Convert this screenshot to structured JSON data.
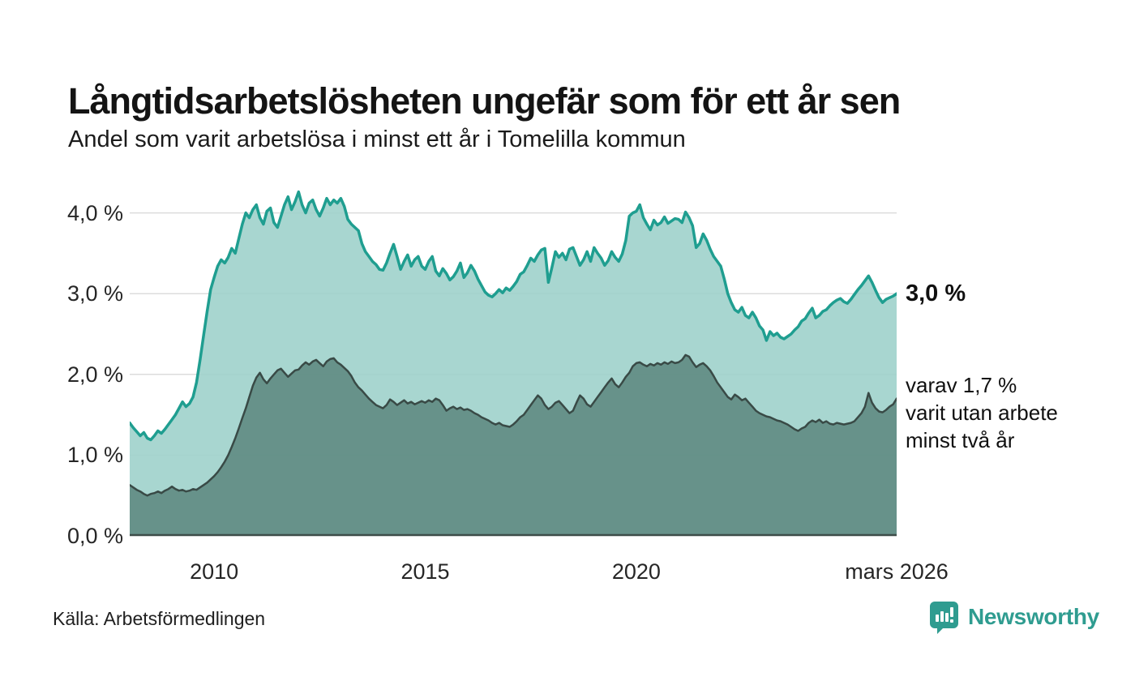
{
  "header": {
    "title": "Långtidsarbetslösheten ungefär som för ett år sen",
    "subtitle": "Andel som varit arbetslösa i minst ett år i Tomelilla kommun"
  },
  "chart_data": {
    "type": "area",
    "title": "Långtidsarbetslösheten ungefär som för ett år sen",
    "subtitle": "Andel som varit arbetslösa i minst ett år i Tomelilla kommun",
    "unit": "%",
    "frequency": "monthly",
    "x_start": "2008-01",
    "x_end": "2026-03",
    "ylim": [
      0,
      4.33
    ],
    "grid": "horizontal",
    "legend_position": "right-edge-annotations",
    "y_ticks": [
      {
        "value": 0,
        "label": "0,0 %"
      },
      {
        "value": 1,
        "label": "1,0 %"
      },
      {
        "value": 2,
        "label": "2,0 %"
      },
      {
        "value": 3,
        "label": "3,0 %"
      },
      {
        "value": 4,
        "label": "4,0 %"
      }
    ],
    "x_ticks": [
      {
        "index": 24,
        "label": "2010"
      },
      {
        "index": 84,
        "label": "2015"
      },
      {
        "index": 144,
        "label": "2020"
      },
      {
        "index": 218,
        "label": "mars 2026"
      }
    ],
    "end_labels": {
      "primary": "3,0 %",
      "secondary_lines": [
        "varav 1,7 %",
        "varit utan arbete",
        "minst två år"
      ]
    },
    "series": [
      {
        "name": "Andel som varit arbetslösa minst ett år",
        "line_color": "#1f9e90",
        "fill_color": "#9fd2cb",
        "line_width": 3.5,
        "latest_value": 3.0,
        "values": [
          1.4,
          1.34,
          1.29,
          1.24,
          1.28,
          1.21,
          1.19,
          1.24,
          1.3,
          1.27,
          1.32,
          1.38,
          1.44,
          1.5,
          1.58,
          1.66,
          1.6,
          1.64,
          1.72,
          1.9,
          2.18,
          2.48,
          2.78,
          3.05,
          3.2,
          3.34,
          3.42,
          3.38,
          3.45,
          3.56,
          3.5,
          3.68,
          3.86,
          4.0,
          3.94,
          4.04,
          4.1,
          3.94,
          3.86,
          4.02,
          4.06,
          3.88,
          3.82,
          3.96,
          4.1,
          4.2,
          4.04,
          4.14,
          4.26,
          4.1,
          4.0,
          4.12,
          4.16,
          4.04,
          3.96,
          4.06,
          4.18,
          4.1,
          4.16,
          4.12,
          4.18,
          4.08,
          3.92,
          3.86,
          3.82,
          3.78,
          3.62,
          3.52,
          3.46,
          3.4,
          3.36,
          3.3,
          3.29,
          3.38,
          3.5,
          3.61,
          3.46,
          3.3,
          3.4,
          3.48,
          3.34,
          3.42,
          3.46,
          3.34,
          3.3,
          3.4,
          3.46,
          3.28,
          3.22,
          3.31,
          3.25,
          3.17,
          3.21,
          3.28,
          3.38,
          3.2,
          3.26,
          3.35,
          3.28,
          3.18,
          3.1,
          3.02,
          2.98,
          2.96,
          3.0,
          3.05,
          3.01,
          3.07,
          3.04,
          3.09,
          3.15,
          3.24,
          3.27,
          3.35,
          3.44,
          3.4,
          3.48,
          3.54,
          3.56,
          3.14,
          3.32,
          3.52,
          3.45,
          3.5,
          3.42,
          3.55,
          3.57,
          3.46,
          3.35,
          3.42,
          3.52,
          3.4,
          3.57,
          3.5,
          3.44,
          3.35,
          3.41,
          3.52,
          3.45,
          3.4,
          3.49,
          3.66,
          3.96,
          4.0,
          4.02,
          4.1,
          3.94,
          3.86,
          3.79,
          3.91,
          3.85,
          3.88,
          3.95,
          3.87,
          3.9,
          3.93,
          3.92,
          3.88,
          4.01,
          3.94,
          3.84,
          3.57,
          3.62,
          3.74,
          3.66,
          3.55,
          3.46,
          3.4,
          3.34,
          3.18,
          3.0,
          2.89,
          2.8,
          2.77,
          2.83,
          2.73,
          2.7,
          2.77,
          2.7,
          2.6,
          2.55,
          2.42,
          2.53,
          2.48,
          2.51,
          2.46,
          2.44,
          2.47,
          2.5,
          2.55,
          2.59,
          2.66,
          2.69,
          2.76,
          2.82,
          2.7,
          2.73,
          2.78,
          2.8,
          2.85,
          2.89,
          2.92,
          2.94,
          2.9,
          2.88,
          2.93,
          2.99,
          3.05,
          3.1,
          3.16,
          3.22,
          3.14,
          3.04,
          2.95,
          2.89,
          2.93,
          2.95,
          2.97,
          3.0
        ]
      },
      {
        "name": "varav arbetslösa minst två år",
        "line_color": "#394a46",
        "fill_color": "#5f8b82",
        "line_width": 2.5,
        "latest_value": 1.7,
        "values": [
          0.63,
          0.6,
          0.57,
          0.55,
          0.52,
          0.5,
          0.52,
          0.53,
          0.55,
          0.53,
          0.56,
          0.58,
          0.61,
          0.58,
          0.56,
          0.57,
          0.55,
          0.56,
          0.58,
          0.57,
          0.6,
          0.63,
          0.66,
          0.7,
          0.74,
          0.79,
          0.85,
          0.92,
          1.0,
          1.1,
          1.21,
          1.33,
          1.46,
          1.58,
          1.72,
          1.86,
          1.96,
          2.02,
          1.94,
          1.89,
          1.95,
          2.0,
          2.05,
          2.07,
          2.02,
          1.97,
          2.01,
          2.05,
          2.06,
          2.11,
          2.15,
          2.12,
          2.16,
          2.18,
          2.14,
          2.1,
          2.16,
          2.19,
          2.2,
          2.15,
          2.12,
          2.08,
          2.04,
          1.98,
          1.9,
          1.84,
          1.8,
          1.75,
          1.7,
          1.66,
          1.62,
          1.6,
          1.58,
          1.62,
          1.69,
          1.66,
          1.62,
          1.65,
          1.68,
          1.64,
          1.66,
          1.63,
          1.65,
          1.67,
          1.65,
          1.68,
          1.66,
          1.7,
          1.68,
          1.62,
          1.55,
          1.58,
          1.6,
          1.57,
          1.59,
          1.56,
          1.57,
          1.55,
          1.52,
          1.5,
          1.47,
          1.45,
          1.43,
          1.4,
          1.38,
          1.4,
          1.37,
          1.36,
          1.35,
          1.38,
          1.42,
          1.47,
          1.5,
          1.56,
          1.62,
          1.68,
          1.74,
          1.7,
          1.62,
          1.57,
          1.6,
          1.65,
          1.67,
          1.62,
          1.57,
          1.52,
          1.55,
          1.65,
          1.74,
          1.7,
          1.63,
          1.6,
          1.66,
          1.72,
          1.78,
          1.84,
          1.9,
          1.95,
          1.88,
          1.84,
          1.9,
          1.97,
          2.02,
          2.1,
          2.14,
          2.15,
          2.12,
          2.1,
          2.13,
          2.11,
          2.14,
          2.12,
          2.15,
          2.13,
          2.16,
          2.14,
          2.15,
          2.18,
          2.24,
          2.22,
          2.15,
          2.09,
          2.12,
          2.14,
          2.1,
          2.05,
          1.98,
          1.9,
          1.84,
          1.78,
          1.72,
          1.69,
          1.75,
          1.72,
          1.68,
          1.7,
          1.65,
          1.6,
          1.55,
          1.52,
          1.5,
          1.48,
          1.47,
          1.45,
          1.43,
          1.42,
          1.4,
          1.38,
          1.35,
          1.32,
          1.3,
          1.33,
          1.35,
          1.4,
          1.43,
          1.41,
          1.44,
          1.4,
          1.42,
          1.39,
          1.38,
          1.4,
          1.39,
          1.38,
          1.39,
          1.4,
          1.42,
          1.47,
          1.52,
          1.6,
          1.77,
          1.65,
          1.58,
          1.54,
          1.53,
          1.56,
          1.6,
          1.63,
          1.7
        ]
      }
    ],
    "colors": {
      "grid": "#dcdcdc",
      "baseline": "#3d4d49",
      "text": "#161616"
    }
  },
  "footer": {
    "source": "Källa: Arbetsförmedlingen",
    "brand": "Newsworthy",
    "brand_color": "#2f9c90"
  }
}
